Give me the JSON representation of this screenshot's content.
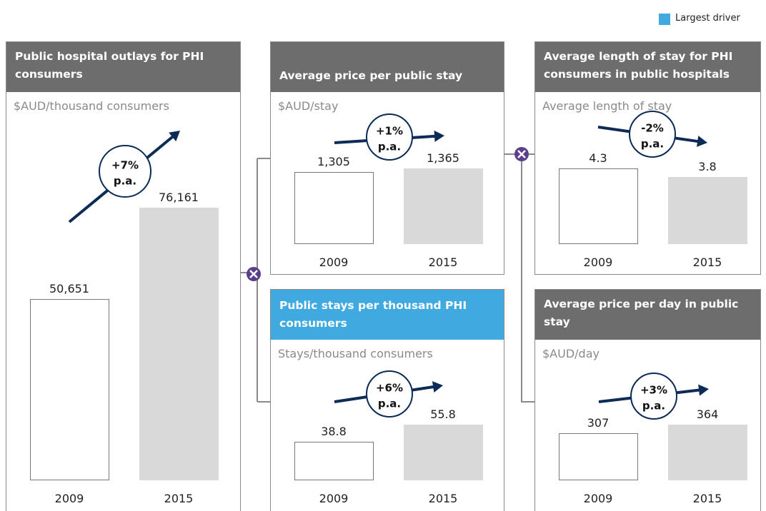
{
  "legend": {
    "label": "Largest driver",
    "color": "#3fa9e0"
  },
  "chart_data": [
    {
      "type": "bar",
      "title": "Public hospital outlays for PHI consumers",
      "subtitle": "$AUD/thousand consumers",
      "header_color": "#6d6d6d",
      "categories": [
        "2009",
        "2015"
      ],
      "values": [
        50651,
        76161
      ],
      "value_labels": [
        "50,651",
        "76,161"
      ],
      "colors": [
        "#ffffff",
        "#d9d9d9"
      ],
      "annotation": [
        "+7%",
        "p.a."
      ]
    },
    {
      "type": "bar",
      "title": "Average price per public stay",
      "subtitle": "$AUD/stay",
      "header_color": "#6d6d6d",
      "categories": [
        "2009",
        "2015"
      ],
      "values": [
        1305,
        1365
      ],
      "value_labels": [
        "1,305",
        "1,365"
      ],
      "colors": [
        "#ffffff",
        "#d9d9d9"
      ],
      "annotation": [
        "+1%",
        "p.a."
      ]
    },
    {
      "type": "bar",
      "title": "Average length of stay for PHI consumers in public hospitals",
      "subtitle": "Average length of stay",
      "header_color": "#6d6d6d",
      "categories": [
        "2009",
        "2015"
      ],
      "values": [
        4.3,
        3.8
      ],
      "colors": [
        "#ffffff",
        "#d9d9d9"
      ],
      "annotation": [
        "-2%",
        "p.a."
      ]
    },
    {
      "type": "bar",
      "title": "Public stays per thousand PHI consumers",
      "subtitle": "Stays/thousand consumers",
      "header_color": "#3fa9e0",
      "categories": [
        "2009",
        "2015"
      ],
      "values": [
        38.8,
        55.8
      ],
      "colors": [
        "#ffffff",
        "#d9d9d9"
      ],
      "annotation": [
        "+6%",
        "p.a."
      ]
    },
    {
      "type": "bar",
      "title": "Average price per day in public stay",
      "subtitle": "$AUD/day",
      "header_color": "#6d6d6d",
      "categories": [
        "2009",
        "2015"
      ],
      "values": [
        307,
        364
      ],
      "colors": [
        "#ffffff",
        "#d9d9d9"
      ],
      "annotation": [
        "+3%",
        "p.a."
      ]
    }
  ]
}
